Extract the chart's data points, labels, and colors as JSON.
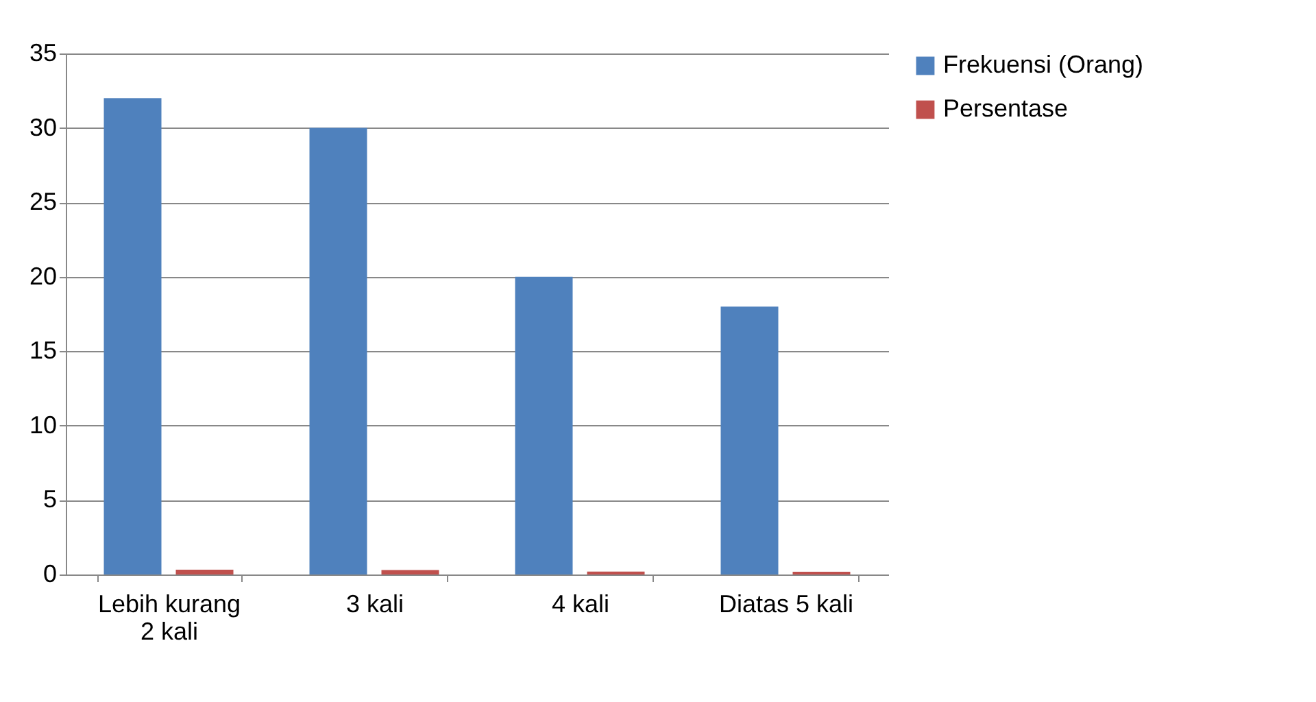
{
  "chart_data": {
    "type": "bar",
    "categories": [
      "Lebih kurang 2 kali",
      "3 kali",
      "4 kali",
      "Diatas 5 kali"
    ],
    "series": [
      {
        "name": "Frekuensi (Orang)",
        "color": "#4f81bd",
        "values": [
          32,
          30,
          20,
          18
        ]
      },
      {
        "name": "Persentase",
        "color": "#c0504d",
        "values": [
          0.32,
          0.3,
          0.2,
          0.18
        ]
      }
    ],
    "ylim": [
      0,
      35
    ],
    "yticks": [
      0,
      5,
      10,
      15,
      20,
      25,
      30,
      35
    ],
    "grid": "y",
    "legend": "right"
  }
}
